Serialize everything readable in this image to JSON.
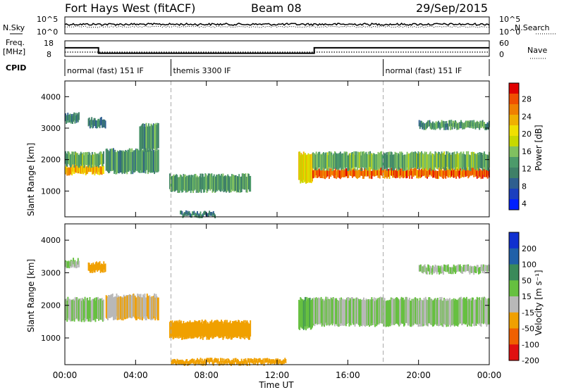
{
  "header": {
    "station": "Fort Hays West (fitACF)",
    "beam": "Beam 08",
    "date": "29/Sep/2015"
  },
  "param_panels": {
    "nsky_label": "N.Sky",
    "nsky_ticks": [
      "10^5",
      "10^0"
    ],
    "nsearch_label": "N.Search",
    "nsearch_ticks": [
      "10^5",
      "10^0"
    ],
    "freq_label_1": "Freq.",
    "freq_label_2": "[MHz]",
    "freq_ticks": [
      "18",
      "8"
    ],
    "nave_label": "Nave",
    "nave_ticks": [
      "60",
      "0"
    ],
    "cpid_label": "CPID",
    "cpid_segments": [
      {
        "label": "normal (fast) 151 IF",
        "start_hour": 0,
        "end_hour": 6
      },
      {
        "label": "themis 3300 IF",
        "start_hour": 6,
        "end_hour": 18
      },
      {
        "label": "normal (fast) 151 IF",
        "start_hour": 18,
        "end_hour": 24
      }
    ],
    "freq_schedule": [
      {
        "start_hour": 0,
        "end_hour": 1.9,
        "mhz": 13.5
      },
      {
        "start_hour": 1.9,
        "end_hour": 14.1,
        "mhz": 10
      },
      {
        "start_hour": 14.1,
        "end_hour": 24,
        "mhz": 13.5
      }
    ]
  },
  "chart_data": [
    {
      "type": "heatmap",
      "title": "Power",
      "ylabel": "Slant Range [km]",
      "ylim": [
        180,
        4500
      ],
      "y_ticks": [
        "4000",
        "3000",
        "2000",
        "1000"
      ],
      "y_tick_values": [
        4000,
        3000,
        2000,
        1000
      ],
      "colorbar_label": "Power [dB]",
      "colorbar_ticks": [
        "28",
        "24",
        "20",
        "16",
        "12",
        "8",
        "4"
      ],
      "colorbar_colors": [
        "#e00000",
        "#f05000",
        "#f08000",
        "#f0b000",
        "#f0e000",
        "#c8d800",
        "#80c060",
        "#4c9a6a",
        "#3f8068",
        "#2f5f8f",
        "#1a3fbf",
        "#0020ff"
      ],
      "vertical_markers_hour": [
        6,
        18
      ],
      "regions": [
        {
          "t0": 0.0,
          "t1": 0.8,
          "r0": 3200,
          "r1": 3450,
          "val": 8
        },
        {
          "t0": 1.3,
          "t1": 2.3,
          "r0": 3050,
          "r1": 3300,
          "val": 8
        },
        {
          "t0": 0.0,
          "t1": 2.2,
          "r0": 1550,
          "r1": 1800,
          "val": 22
        },
        {
          "t0": 0.0,
          "t1": 2.2,
          "r0": 1800,
          "r1": 2200,
          "val": 12
        },
        {
          "t0": 2.3,
          "t1": 5.3,
          "r0": 1600,
          "r1": 2300,
          "val": 10
        },
        {
          "t0": 4.2,
          "t1": 5.3,
          "r0": 2300,
          "r1": 3100,
          "val": 10
        },
        {
          "t0": 5.9,
          "t1": 10.5,
          "r0": 1000,
          "r1": 1500,
          "val": 11
        },
        {
          "t0": 6.5,
          "t1": 8.5,
          "r0": 200,
          "r1": 320,
          "val": 8
        },
        {
          "t0": 13.2,
          "t1": 14.0,
          "r0": 1300,
          "r1": 2200,
          "val": 20
        },
        {
          "t0": 14.0,
          "t1": 24.0,
          "r0": 1450,
          "r1": 1700,
          "val": 26
        },
        {
          "t0": 14.0,
          "t1": 24.0,
          "r0": 1700,
          "r1": 2200,
          "val": 12
        },
        {
          "t0": 20.0,
          "t1": 24.0,
          "r0": 3000,
          "r1": 3200,
          "val": 10
        }
      ]
    },
    {
      "type": "heatmap",
      "title": "Velocity",
      "ylabel": "Slant Range [km]",
      "ylim": [
        180,
        4500
      ],
      "y_ticks": [
        "4000",
        "3000",
        "2000",
        "1000"
      ],
      "y_tick_values": [
        4000,
        3000,
        2000,
        1000
      ],
      "colorbar_label": "Velocity [m s⁻¹]",
      "colorbar_ticks": [
        "200",
        "100",
        "50",
        "15",
        "-15",
        "-50",
        "-100",
        "-200"
      ],
      "colorbar_colors": [
        "#1030d0",
        "#2060a8",
        "#3a8a5a",
        "#66c040",
        "#b8b8b8",
        "#f0a000",
        "#f06000",
        "#e01010"
      ],
      "vertical_markers_hour": [
        6,
        18
      ],
      "regions": [
        {
          "t0": 0.0,
          "t1": 0.8,
          "r0": 3200,
          "r1": 3400,
          "val": 0
        },
        {
          "t0": 1.3,
          "t1": 2.3,
          "r0": 3050,
          "r1": 3300,
          "val": -60
        },
        {
          "t0": 0.0,
          "t1": 2.2,
          "r0": 1550,
          "r1": 2200,
          "val": 0
        },
        {
          "t0": 2.3,
          "t1": 5.3,
          "r0": 1600,
          "r1": 2300,
          "val": -30
        },
        {
          "t0": 5.9,
          "t1": 10.5,
          "r0": 1000,
          "r1": 1500,
          "val": -60
        },
        {
          "t0": 6.0,
          "t1": 12.5,
          "r0": 200,
          "r1": 330,
          "val": -55
        },
        {
          "t0": 13.2,
          "t1": 14.0,
          "r0": 1300,
          "r1": 2200,
          "val": 25
        },
        {
          "t0": 14.0,
          "t1": 24.0,
          "r0": 1400,
          "r1": 2200,
          "val": 0
        },
        {
          "t0": 20.0,
          "t1": 24.0,
          "r0": 3000,
          "r1": 3200,
          "val": 0
        }
      ]
    }
  ],
  "x_axis": {
    "label": "Time UT",
    "ticks": [
      "00:00",
      "04:00",
      "08:00",
      "12:00",
      "16:00",
      "20:00",
      "00:00"
    ],
    "tick_hours": [
      0,
      4,
      8,
      12,
      16,
      20,
      24
    ]
  }
}
